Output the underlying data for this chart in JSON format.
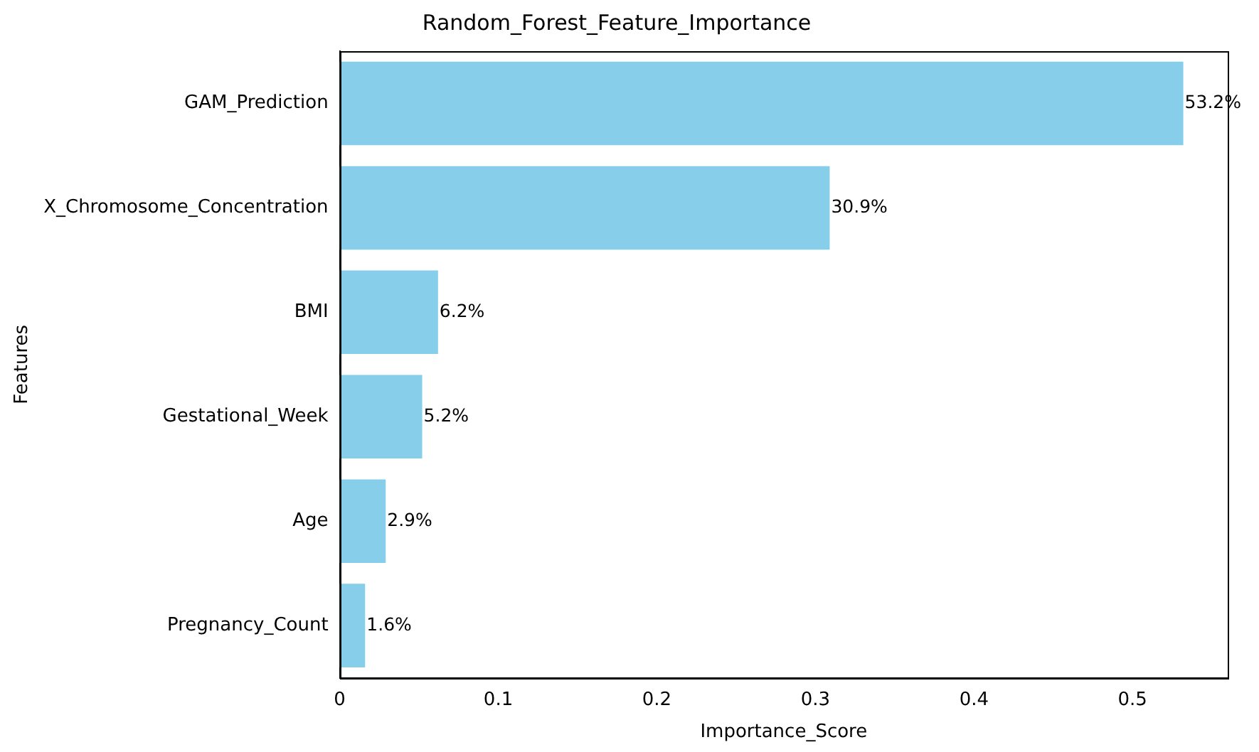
{
  "chart_data": {
    "type": "bar",
    "orientation": "horizontal",
    "title": "Random_Forest_Feature_Importance",
    "xlabel": "Importance_Score",
    "ylabel": "Features",
    "categories": [
      "GAM_Prediction",
      "X_Chromosome_Concentration",
      "BMI",
      "Gestational_Week",
      "Age",
      "Pregnancy_Count"
    ],
    "values": [
      0.532,
      0.309,
      0.062,
      0.052,
      0.029,
      0.016
    ],
    "value_labels": [
      "53.2%",
      "30.9%",
      "6.2%",
      "5.2%",
      "2.9%",
      "1.6%"
    ],
    "color": "#87ceeb",
    "xlim": [
      0,
      0.56
    ],
    "xticks": [
      0,
      0.1,
      0.2,
      0.3,
      0.4,
      0.5
    ],
    "grid": false,
    "legend": false
  }
}
